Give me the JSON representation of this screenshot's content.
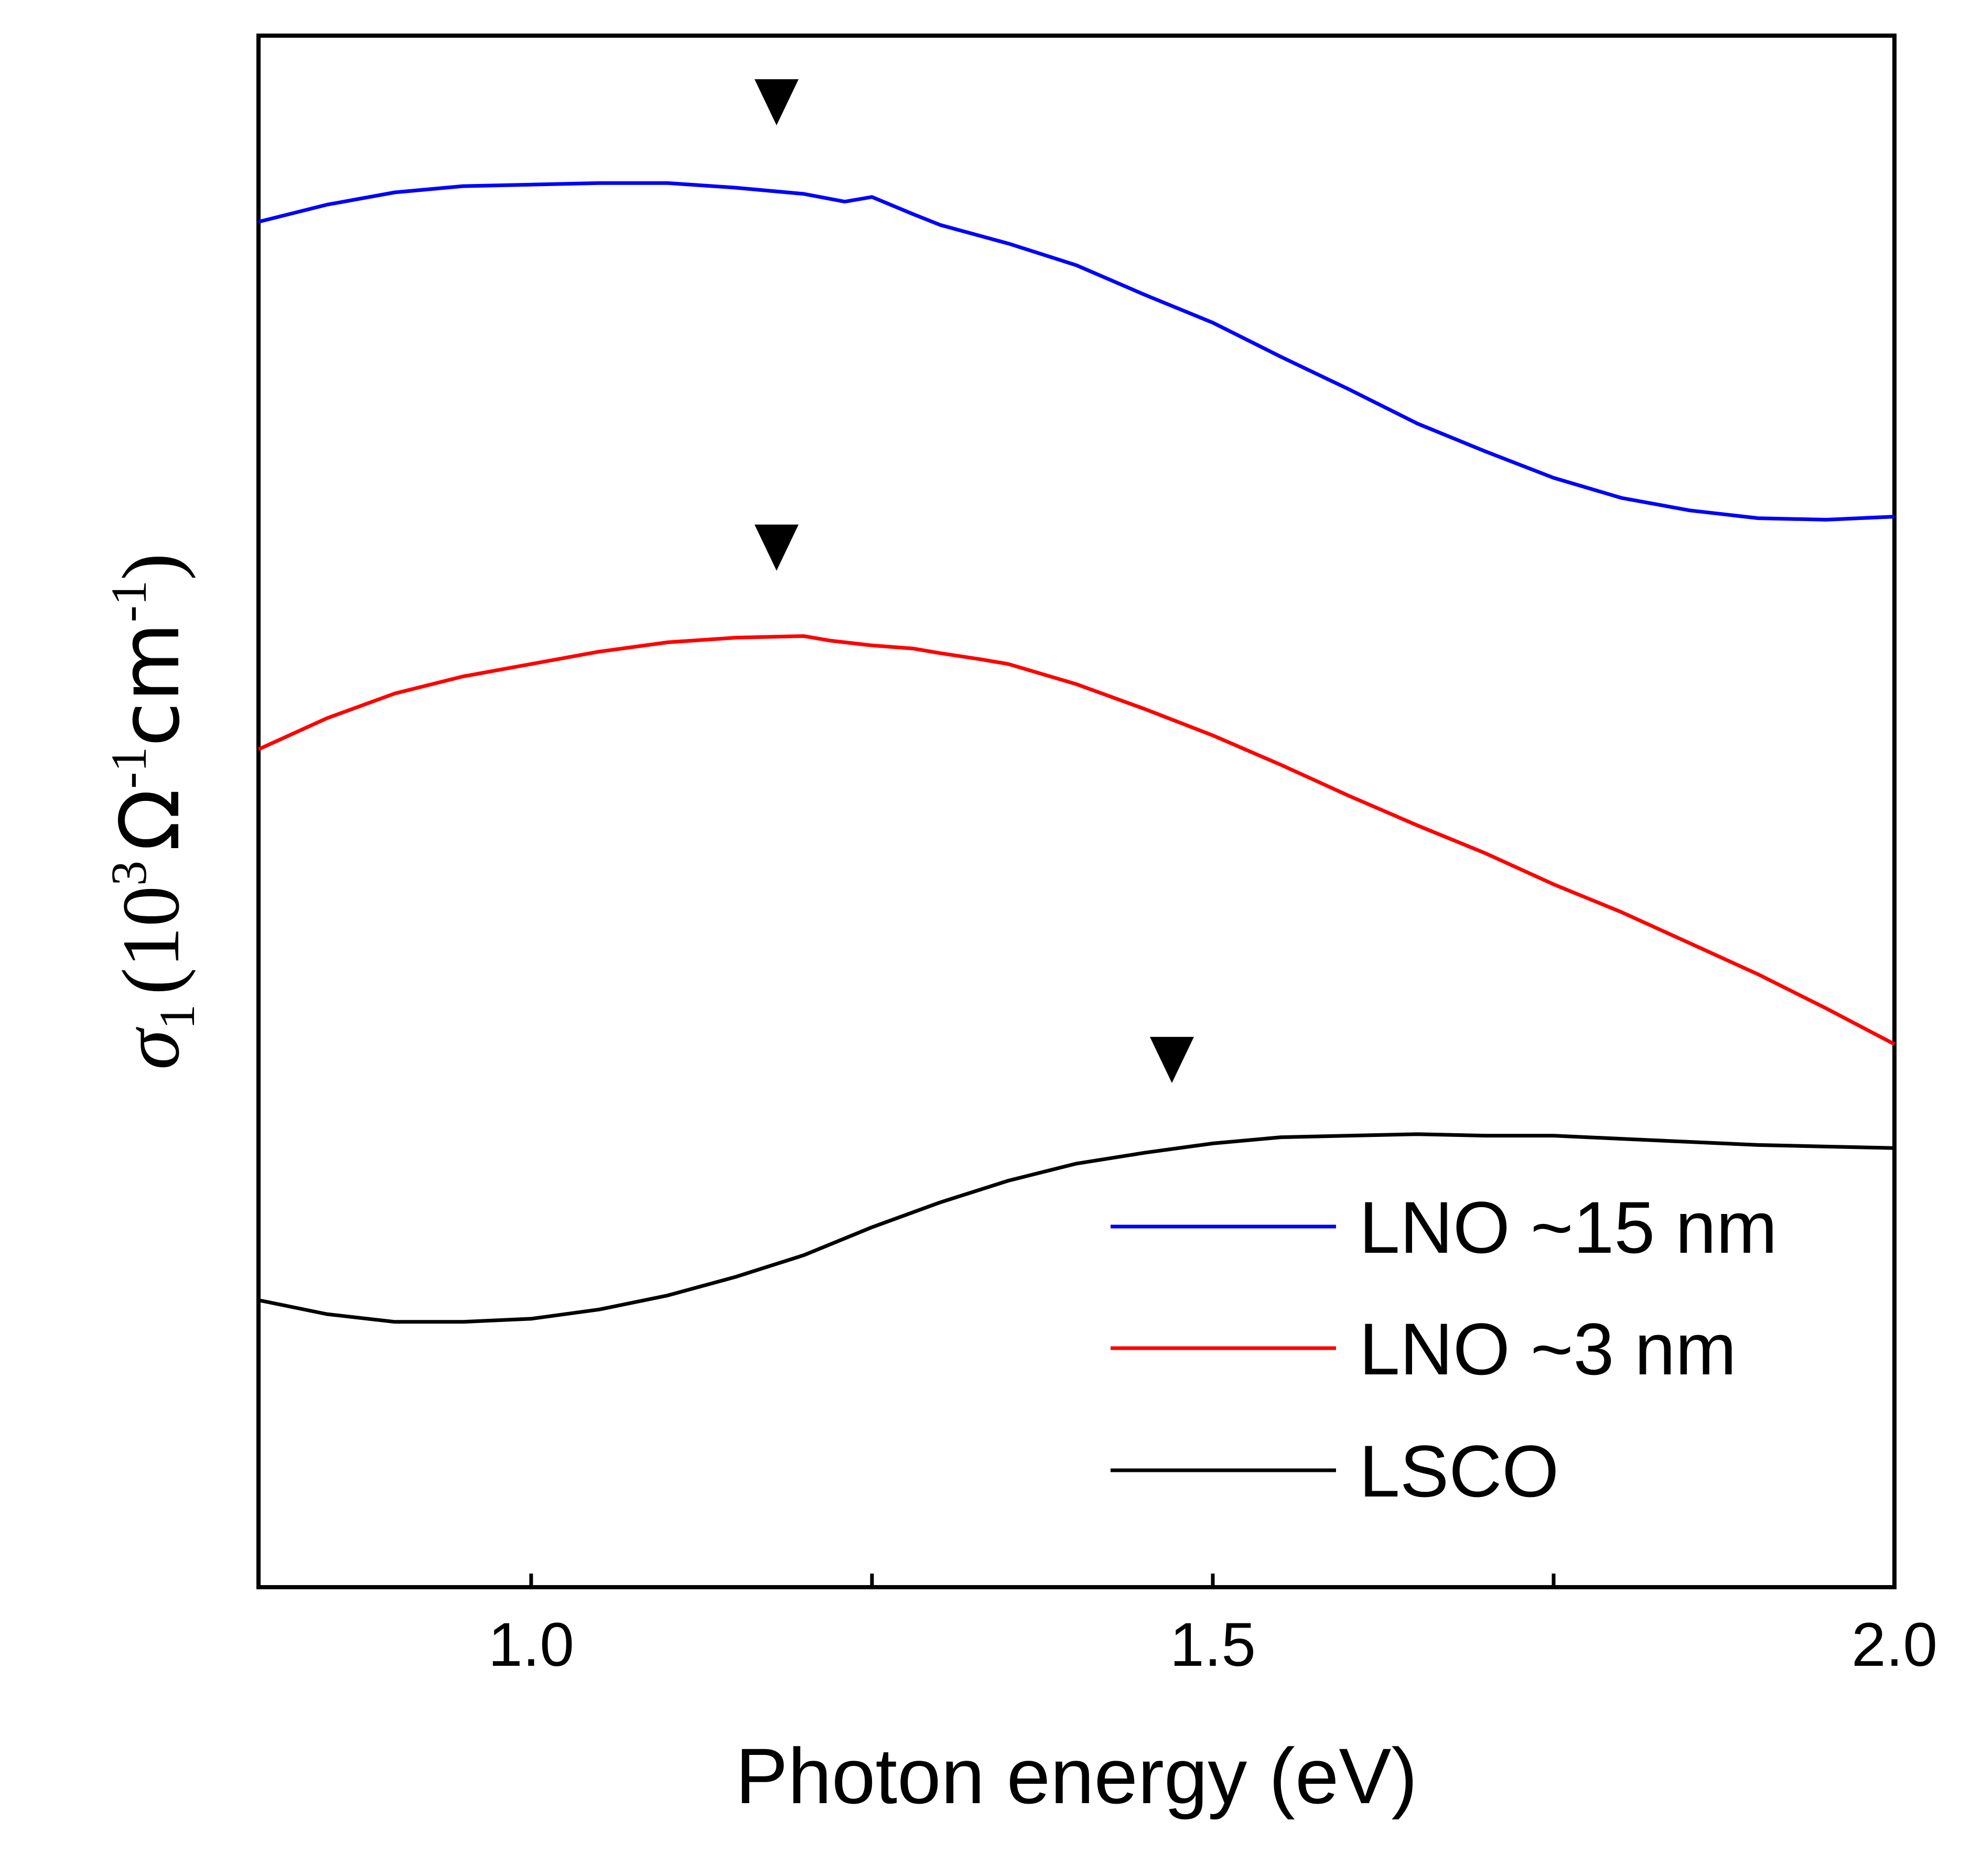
{
  "chart_data": {
    "type": "line",
    "title": "",
    "xlabel": "Photon energy (eV)",
    "ylabel": {
      "sigma": "σ",
      "sigma_sub": "1",
      "open": "(10",
      "exp3": "3",
      "omega": "Ω",
      "exp_neg1_a": "-1",
      "cm": "cm",
      "exp_neg1_b": "-1",
      "close": ")"
    },
    "xlim": [
      0.8,
      2.0
    ],
    "ylim": [
      0,
      10
    ],
    "y_ticks_labeled": false,
    "x_ticks": [
      {
        "value": 1.0,
        "label": "1.0"
      },
      {
        "value": 1.5,
        "label": "1.5"
      },
      {
        "value": 2.0,
        "label": "2.0"
      }
    ],
    "x_minor_ticks": [
      1.25,
      1.75
    ],
    "series": [
      {
        "name": "LNO ~15 nm",
        "color": "#0000ff",
        "x": [
          0.8,
          0.85,
          0.9,
          0.95,
          1.0,
          1.05,
          1.1,
          1.15,
          1.2,
          1.23,
          1.25,
          1.28,
          1.3,
          1.35,
          1.4,
          1.45,
          1.5,
          1.55,
          1.6,
          1.65,
          1.7,
          1.75,
          1.8,
          1.85,
          1.9,
          1.95,
          2.0
        ],
        "values": [
          8.8,
          8.91,
          8.99,
          9.03,
          9.04,
          9.05,
          9.05,
          9.02,
          8.98,
          8.93,
          8.96,
          8.85,
          8.78,
          8.66,
          8.52,
          8.33,
          8.15,
          7.93,
          7.72,
          7.5,
          7.32,
          7.15,
          7.02,
          6.94,
          6.89,
          6.88,
          6.9
        ],
        "peak_marker_x": 1.18
      },
      {
        "name": "LNO ~3 nm",
        "color": "#ff0000",
        "x": [
          0.8,
          0.85,
          0.9,
          0.95,
          1.0,
          1.05,
          1.1,
          1.15,
          1.2,
          1.22,
          1.25,
          1.28,
          1.3,
          1.33,
          1.35,
          1.4,
          1.45,
          1.5,
          1.55,
          1.6,
          1.65,
          1.7,
          1.75,
          1.8,
          1.85,
          1.9,
          1.95,
          2.0
        ],
        "values": [
          5.4,
          5.6,
          5.76,
          5.87,
          5.95,
          6.03,
          6.09,
          6.12,
          6.13,
          6.1,
          6.07,
          6.05,
          6.02,
          5.98,
          5.95,
          5.82,
          5.66,
          5.49,
          5.3,
          5.1,
          4.91,
          4.73,
          4.53,
          4.35,
          4.15,
          3.95,
          3.73,
          3.5
        ],
        "peak_marker_x": 1.18
      },
      {
        "name": "LSCO",
        "color": "#000000",
        "x": [
          0.8,
          0.85,
          0.9,
          0.95,
          1.0,
          1.05,
          1.1,
          1.15,
          1.2,
          1.25,
          1.3,
          1.35,
          1.4,
          1.45,
          1.5,
          1.55,
          1.6,
          1.65,
          1.7,
          1.75,
          1.8,
          1.85,
          1.9,
          1.95,
          2.0
        ],
        "values": [
          1.85,
          1.76,
          1.71,
          1.71,
          1.73,
          1.79,
          1.88,
          2.0,
          2.14,
          2.32,
          2.48,
          2.62,
          2.73,
          2.8,
          2.86,
          2.9,
          2.91,
          2.92,
          2.91,
          2.91,
          2.89,
          2.87,
          2.85,
          2.84,
          2.83
        ],
        "peak_marker_x": 1.47
      }
    ],
    "legend": {
      "position": "bottom-right",
      "entries": [
        "LNO ~15 nm",
        "LNO ~3 nm",
        "LSCO"
      ]
    },
    "grid": false
  }
}
